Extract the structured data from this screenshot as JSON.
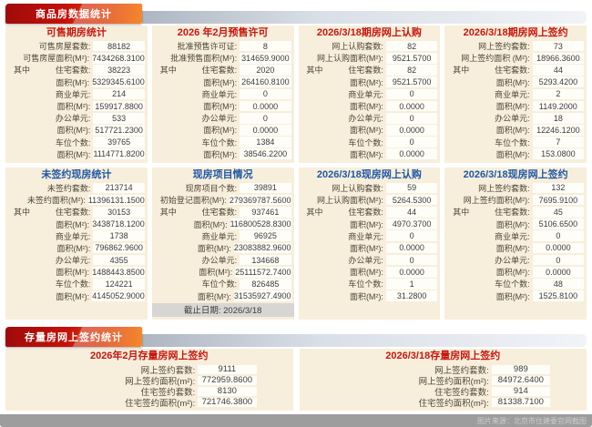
{
  "page": {
    "section1_tab": "商品房数据统计",
    "section2_tab": "存量房网上签约统计",
    "source_note": "图片来源：北京市住建委官网截图"
  },
  "colors": {
    "accent_red": "#c9150d",
    "accent_blue": "#1f57a5",
    "panel_bg": "#f7efdb",
    "tab_gradient_start": "#9e0b0b",
    "tab_gradient_end": "#f5831f",
    "footer_bar": "#9d9d9d"
  },
  "commodity_panels": [
    {
      "title": "可售期房统计",
      "accent": "red",
      "rows": [
        {
          "prefix": "",
          "label": "可售房屋套数:",
          "value": "88182"
        },
        {
          "prefix": "",
          "label": "可售房屋面积(M²):",
          "value": "7434268.3100"
        },
        {
          "prefix": "其中",
          "label": "住宅套数:",
          "value": "38223"
        },
        {
          "prefix": "",
          "label": "面积(M²):",
          "value": "5329345.6100"
        },
        {
          "prefix": "",
          "label": "商业单元:",
          "value": "214"
        },
        {
          "prefix": "",
          "label": "面积(M²):",
          "value": "159917.8800"
        },
        {
          "prefix": "",
          "label": "办公单元:",
          "value": "533"
        },
        {
          "prefix": "",
          "label": "面积(M²):",
          "value": "517721.2300"
        },
        {
          "prefix": "",
          "label": "车位个数:",
          "value": "39765"
        },
        {
          "prefix": "",
          "label": "面积(M²):",
          "value": "1114771.8200"
        }
      ]
    },
    {
      "title": "2026 年2月预售许可",
      "accent": "red",
      "rows": [
        {
          "prefix": "",
          "label": "批准预售许可证:",
          "value": "8"
        },
        {
          "prefix": "",
          "label": "批准预售面积(M²):",
          "value": "314659.9000"
        },
        {
          "prefix": "其中",
          "label": "住宅套数:",
          "value": "2020"
        },
        {
          "prefix": "",
          "label": "面积(M²):",
          "value": "264160.8100"
        },
        {
          "prefix": "",
          "label": "商业单元:",
          "value": "0"
        },
        {
          "prefix": "",
          "label": "面积(M²):",
          "value": "0.0000"
        },
        {
          "prefix": "",
          "label": "办公单元:",
          "value": "0"
        },
        {
          "prefix": "",
          "label": "面积(M²):",
          "value": "0.0000"
        },
        {
          "prefix": "",
          "label": "车位个数:",
          "value": "1384"
        },
        {
          "prefix": "",
          "label": "面积(M²):",
          "value": "38546.2200"
        }
      ]
    },
    {
      "title": "2026/3/18期房网上认购",
      "accent": "red",
      "rows": [
        {
          "prefix": "",
          "label": "网上认购套数:",
          "value": "82"
        },
        {
          "prefix": "",
          "label": "网上认购面积(M²):",
          "value": "9521.5700"
        },
        {
          "prefix": "其中",
          "label": "住宅套数:",
          "value": "82"
        },
        {
          "prefix": "",
          "label": "面积(M²):",
          "value": "9521.5700"
        },
        {
          "prefix": "",
          "label": "商业单元:",
          "value": "0"
        },
        {
          "prefix": "",
          "label": "面积(M²):",
          "value": "0.0000"
        },
        {
          "prefix": "",
          "label": "办公单元:",
          "value": "0"
        },
        {
          "prefix": "",
          "label": "面积(M²):",
          "value": "0.0000"
        },
        {
          "prefix": "",
          "label": "车位个数:",
          "value": "0"
        },
        {
          "prefix": "",
          "label": "面积(M²):",
          "value": "0.0000"
        }
      ]
    },
    {
      "title": "2026/3/18期房网上签约",
      "accent": "red",
      "rows": [
        {
          "prefix": "",
          "label": "网上签约套数:",
          "value": "73"
        },
        {
          "prefix": "",
          "label": "网上签约面积 (M²):",
          "value": "18966.3600"
        },
        {
          "prefix": "其中",
          "label": "住宅套数:",
          "value": "44"
        },
        {
          "prefix": "",
          "label": "面积(M²):",
          "value": "5293.4200"
        },
        {
          "prefix": "",
          "label": "商业单元:",
          "value": "2"
        },
        {
          "prefix": "",
          "label": "面积(M²):",
          "value": "1149.2000"
        },
        {
          "prefix": "",
          "label": "办公单元:",
          "value": "18"
        },
        {
          "prefix": "",
          "label": "面积(M²):",
          "value": "12246.1200"
        },
        {
          "prefix": "",
          "label": "车位个数:",
          "value": "7"
        },
        {
          "prefix": "",
          "label": "面积(M²):",
          "value": "153.0800"
        }
      ]
    },
    {
      "title": "未签约现房统计",
      "accent": "blue",
      "footer": "",
      "rows": [
        {
          "prefix": "",
          "label": "未签约套数:",
          "value": "213714"
        },
        {
          "prefix": "",
          "label": "未签约面积(M²):",
          "value": "11396131.1500"
        },
        {
          "prefix": "其中",
          "label": "住宅套数:",
          "value": "30153"
        },
        {
          "prefix": "",
          "label": "面积(M²):",
          "value": "3438718.1200"
        },
        {
          "prefix": "",
          "label": "商业单元:",
          "value": "1738"
        },
        {
          "prefix": "",
          "label": "面积(M²):",
          "value": "796862.9600"
        },
        {
          "prefix": "",
          "label": "办公单元:",
          "value": "4355"
        },
        {
          "prefix": "",
          "label": "面积(M²):",
          "value": "1488443.8500"
        },
        {
          "prefix": "",
          "label": "车位个数:",
          "value": "124221"
        },
        {
          "prefix": "",
          "label": "面积(M²):",
          "value": "4145052.9000"
        }
      ]
    },
    {
      "title": "现房项目情况",
      "accent": "blue",
      "footer": "截止日期: 2026/3/18",
      "rows": [
        {
          "prefix": "",
          "label": "现房项目个数:",
          "value": "39891"
        },
        {
          "prefix": "",
          "label": "初始登记面积(M²):",
          "value": "279369787.5600"
        },
        {
          "prefix": "其中",
          "label": "住宅套数:",
          "value": "937461"
        },
        {
          "prefix": "",
          "label": "面积(M²):",
          "value": "116800528.8300"
        },
        {
          "prefix": "",
          "label": "商业单元:",
          "value": "96925"
        },
        {
          "prefix": "",
          "label": "面积(M²):",
          "value": "23083882.9600"
        },
        {
          "prefix": "",
          "label": "办公单元:",
          "value": "134668"
        },
        {
          "prefix": "",
          "label": "面积(M²):",
          "value": "25111572.7400"
        },
        {
          "prefix": "",
          "label": "车位个数:",
          "value": "826485"
        },
        {
          "prefix": "",
          "label": "面积(M²):",
          "value": "31535927.4900"
        }
      ]
    },
    {
      "title": "2026/3/18现房网上认购",
      "accent": "blue",
      "footer": "",
      "rows": [
        {
          "prefix": "",
          "label": "网上认购套数:",
          "value": "59"
        },
        {
          "prefix": "",
          "label": "网上认购面积(M²):",
          "value": "5264.5300"
        },
        {
          "prefix": "其中",
          "label": "住宅套数:",
          "value": "44"
        },
        {
          "prefix": "",
          "label": "面积(M²):",
          "value": "4970.3700"
        },
        {
          "prefix": "",
          "label": "商业单元:",
          "value": "0"
        },
        {
          "prefix": "",
          "label": "面积(M²):",
          "value": "0.0000"
        },
        {
          "prefix": "",
          "label": "办公单元:",
          "value": "0"
        },
        {
          "prefix": "",
          "label": "面积(M²):",
          "value": "0.0000"
        },
        {
          "prefix": "",
          "label": "车位个数:",
          "value": "1"
        },
        {
          "prefix": "",
          "label": "面积(M²):",
          "value": "31.2800"
        }
      ]
    },
    {
      "title": "2026/3/18现房网上签约",
      "accent": "blue",
      "footer": "",
      "rows": [
        {
          "prefix": "",
          "label": "网上签约套数:",
          "value": "132"
        },
        {
          "prefix": "",
          "label": "网上签约面积(M²):",
          "value": "7695.9100"
        },
        {
          "prefix": "其中",
          "label": "住宅套数:",
          "value": "45"
        },
        {
          "prefix": "",
          "label": "面积(M²):",
          "value": "5106.6500"
        },
        {
          "prefix": "",
          "label": "商业单元:",
          "value": "0"
        },
        {
          "prefix": "",
          "label": "面积(M²):",
          "value": "0.0000"
        },
        {
          "prefix": "",
          "label": "办公单元:",
          "value": "0"
        },
        {
          "prefix": "",
          "label": "面积(M²):",
          "value": "0.0000"
        },
        {
          "prefix": "",
          "label": "车位个数:",
          "value": "48"
        },
        {
          "prefix": "",
          "label": "面积(M²):",
          "value": "1525.8100"
        }
      ]
    }
  ],
  "stock_panels": [
    {
      "title": "2026年2月存量房网上签约",
      "accent": "red",
      "rows": [
        {
          "prefix": "",
          "label": "网上签约套数:",
          "value": "9111"
        },
        {
          "prefix": "",
          "label": "网上签约面积(m²):",
          "value": "772959.8600"
        },
        {
          "prefix": "",
          "label": "住宅签约套数:",
          "value": "8130"
        },
        {
          "prefix": "",
          "label": "住宅签约面积(m²):",
          "value": "721746.3800"
        }
      ]
    },
    {
      "title": "2026/3/18存量房网上签约",
      "accent": "red",
      "rows": [
        {
          "prefix": "",
          "label": "网上签约套数:",
          "value": "989"
        },
        {
          "prefix": "",
          "label": "网上签约面积(m²):",
          "value": "84972.6400"
        },
        {
          "prefix": "",
          "label": "住宅签约套数:",
          "value": "914"
        },
        {
          "prefix": "",
          "label": "住宅签约面积(m²):",
          "value": "81338.7100"
        }
      ]
    }
  ]
}
